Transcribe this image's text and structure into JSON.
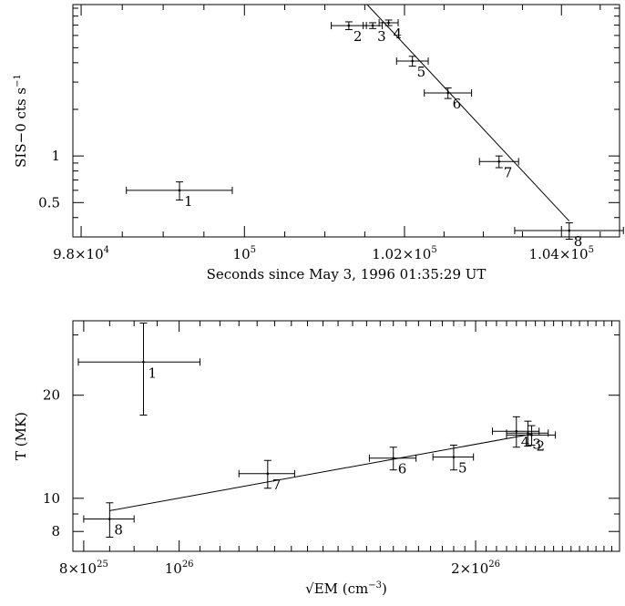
{
  "chart_data": [
    {
      "type": "scatter",
      "xlabel": "Seconds since May 3, 1996 01:35:29 UT",
      "ylabel": "SIS−0 cts s",
      "ylabel_sup": "−1",
      "x_scale": "log",
      "y_scale": "log",
      "xlim": [
        97900,
        104750
      ],
      "ylim": [
        0.3,
        9.5
      ],
      "x_ticks": [
        {
          "value": 98000,
          "label": "9.8×10",
          "sup": "4"
        },
        {
          "value": 100000,
          "label": "10",
          "sup": "5"
        },
        {
          "value": 102000,
          "label": "1.02×10",
          "sup": "5"
        },
        {
          "value": 104000,
          "label": "1.04×10",
          "sup": "5"
        }
      ],
      "y_ticks": [
        {
          "value": 0.5,
          "label": "0.5"
        },
        {
          "value": 1,
          "label": "1"
        }
      ],
      "points": [
        {
          "label": "1",
          "x": 99200,
          "x_err": 650,
          "y": 0.6,
          "y_err": 0.08
        },
        {
          "label": "2",
          "x": 101300,
          "x_err": 220,
          "y": 6.95,
          "y_err": 0.4
        },
        {
          "label": "3",
          "x": 101600,
          "x_err": 120,
          "y": 6.95,
          "y_err": 0.3
        },
        {
          "label": "4",
          "x": 101800,
          "x_err": 120,
          "y": 7.25,
          "y_err": 0.3
        },
        {
          "label": "5",
          "x": 102100,
          "x_err": 200,
          "y": 4.1,
          "y_err": 0.3
        },
        {
          "label": "6",
          "x": 102550,
          "x_err": 300,
          "y": 2.55,
          "y_err": 0.2
        },
        {
          "label": "7",
          "x": 103200,
          "x_err": 250,
          "y": 0.92,
          "y_err": 0.08
        },
        {
          "label": "8",
          "x": 104100,
          "x_err": 700,
          "y": 0.33,
          "y_err": 0.04
        }
      ],
      "fit_line": [
        [
          101530,
          9.5
        ],
        [
          104100,
          0.38
        ]
      ]
    },
    {
      "type": "scatter",
      "xlabel": "EM (cm",
      "xlabel_prefix": "√",
      "xlabel_sup": "−3",
      "xlabel_suffix": ")",
      "ylabel": "T (MK)",
      "x_scale": "log",
      "y_scale": "log",
      "xlim": [
        7.8e+25,
        2.8e+26
      ],
      "ylim": [
        7,
        33
      ],
      "x_ticks": [
        {
          "value": 8e+25,
          "label": "8×10",
          "sup": "25"
        },
        {
          "value": 1e+26,
          "label": "10",
          "sup": "26"
        },
        {
          "value": 2e+26,
          "label": "2×10",
          "sup": "26"
        }
      ],
      "y_ticks": [
        {
          "value": 8,
          "label": "8"
        },
        {
          "value": 10,
          "label": "10"
        },
        {
          "value": 20,
          "label": "20"
        }
      ],
      "points": [
        {
          "label": "1",
          "x": 9.2e+25,
          "x_err": 1.3e+25,
          "y": 25,
          "y_err": 7.5
        },
        {
          "label": "2",
          "x": 2.28e+26,
          "x_err": 1.3e+25,
          "y": 15.3,
          "y_err": 1.0
        },
        {
          "label": "3",
          "x": 2.26e+26,
          "x_err": 1.1e+25,
          "y": 15.5,
          "y_err": 1.3
        },
        {
          "label": "4",
          "x": 2.2e+26,
          "x_err": 1.2e+25,
          "y": 15.7,
          "y_err": 1.6
        },
        {
          "label": "5",
          "x": 1.9e+26,
          "x_err": 9e+24,
          "y": 13.2,
          "y_err": 1.1
        },
        {
          "label": "6",
          "x": 1.65e+26,
          "x_err": 9e+24,
          "y": 13.1,
          "y_err": 1.0
        },
        {
          "label": "7",
          "x": 1.23e+26,
          "x_err": 8e+24,
          "y": 11.8,
          "y_err": 1.1
        },
        {
          "label": "8",
          "x": 8.5e+25,
          "x_err": 5e+24,
          "y": 8.7,
          "y_err": 1.0
        }
      ],
      "fit_line": [
        [
          8.5e+25,
          9.2
        ],
        [
          2.28e+26,
          15.4
        ]
      ]
    }
  ]
}
